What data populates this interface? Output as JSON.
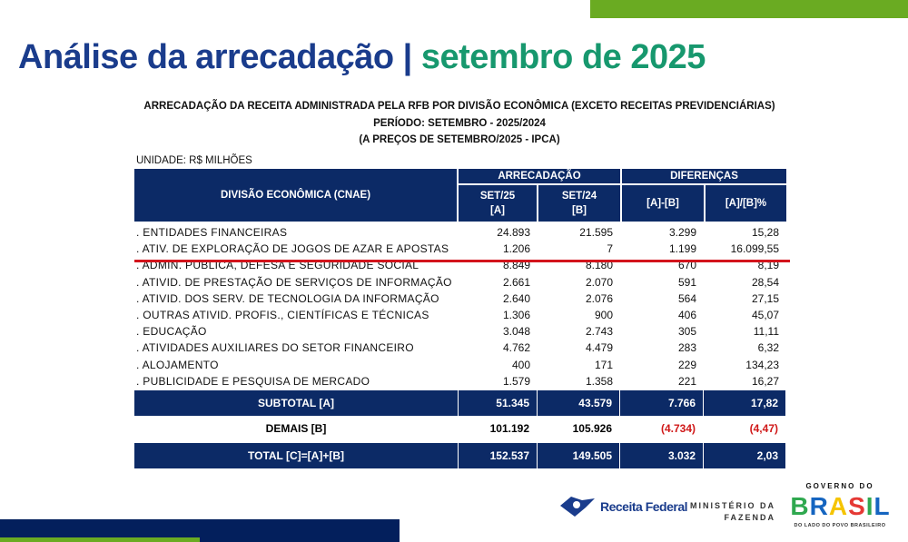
{
  "title": {
    "main": "Análise da arrecadação |",
    "accent": "setembro de 2025"
  },
  "subtitle": [
    "ARRECADAÇÃO DA RECEITA ADMINISTRADA PELA RFB POR DIVISÃO ECONÔMICA (EXCETO RECEITAS PREVIDENCIÁRIAS)",
    "PERÍODO: SETEMBRO - 2025/2024",
    "(A PREÇOS DE SETEMBRO/2025 - IPCA)"
  ],
  "unit": "UNIDADE: R$ MILHÕES",
  "headers": {
    "division": "DIVISÃO ECONÔMICA (CNAE)",
    "arrecadacao": "ARRECADAÇÃO",
    "diferencas": "DIFERENÇAS",
    "set25": "SET/25",
    "a": "[A]",
    "set24": "SET/24",
    "b": "[B]",
    "diff": "[A]-[B]",
    "pct": "[A]/[B]%"
  },
  "rows": [
    {
      "name": ". ENTIDADES FINANCEIRAS",
      "a": "24.893",
      "b": "21.595",
      "diff": "3.299",
      "pct": "15,28"
    },
    {
      "name": ". ATIV. DE EXPLORAÇÃO DE JOGOS DE AZAR E APOSTAS",
      "a": "1.206",
      "b": "7",
      "diff": "1.199",
      "pct": "16.099,55"
    },
    {
      "name": ". ADMIN. PUBLICA, DEFESA E SEGURIDADE SOCIAL",
      "a": "8.849",
      "b": "8.180",
      "diff": "670",
      "pct": "8,19"
    },
    {
      "name": ". ATIVID. DE PRESTAÇÃO DE SERVIÇOS DE INFORMAÇÃO",
      "a": "2.661",
      "b": "2.070",
      "diff": "591",
      "pct": "28,54"
    },
    {
      "name": ". ATIVID. DOS SERV. DE TECNOLOGIA DA INFORMAÇÃO",
      "a": "2.640",
      "b": "2.076",
      "diff": "564",
      "pct": "27,15"
    },
    {
      "name": ". OUTRAS ATIVID. PROFIS., CIENTÍFICAS E TÉCNICAS",
      "a": "1.306",
      "b": "900",
      "diff": "406",
      "pct": "45,07"
    },
    {
      "name": ". EDUCAÇÃO",
      "a": "3.048",
      "b": "2.743",
      "diff": "305",
      "pct": "11,11"
    },
    {
      "name": ". ATIVIDADES AUXILIARES DO SETOR FINANCEIRO",
      "a": "4.762",
      "b": "4.479",
      "diff": "283",
      "pct": "6,32"
    },
    {
      "name": ". ALOJAMENTO",
      "a": "400",
      "b": "171",
      "diff": "229",
      "pct": "134,23"
    },
    {
      "name": ". PUBLICIDADE E PESQUISA DE MERCADO",
      "a": "1.579",
      "b": "1.358",
      "diff": "221",
      "pct": "16,27"
    }
  ],
  "subtotal": {
    "name": "SUBTOTAL [A]",
    "a": "51.345",
    "b": "43.579",
    "diff": "7.766",
    "pct": "17,82"
  },
  "demais": {
    "name": "DEMAIS [B]",
    "a": "101.192",
    "b": "105.926",
    "diff": "(4.734)",
    "pct": "(4,47)"
  },
  "total": {
    "name": "TOTAL [C]=[A]+[B]",
    "a": "152.537",
    "b": "149.505",
    "diff": "3.032",
    "pct": "2,03"
  },
  "logos": {
    "rf": "Receita Federal",
    "min1": "MINISTÉRIO DA",
    "min2": "FAZENDA",
    "gov_top": "GOVERNO DO",
    "gov_brasil": "BRASIL",
    "gov_sub": "DO LADO DO POVO BRASILEIRO"
  },
  "colors": {
    "navy": "#0c2a66",
    "green": "#6aab22",
    "red": "#d3141c"
  }
}
